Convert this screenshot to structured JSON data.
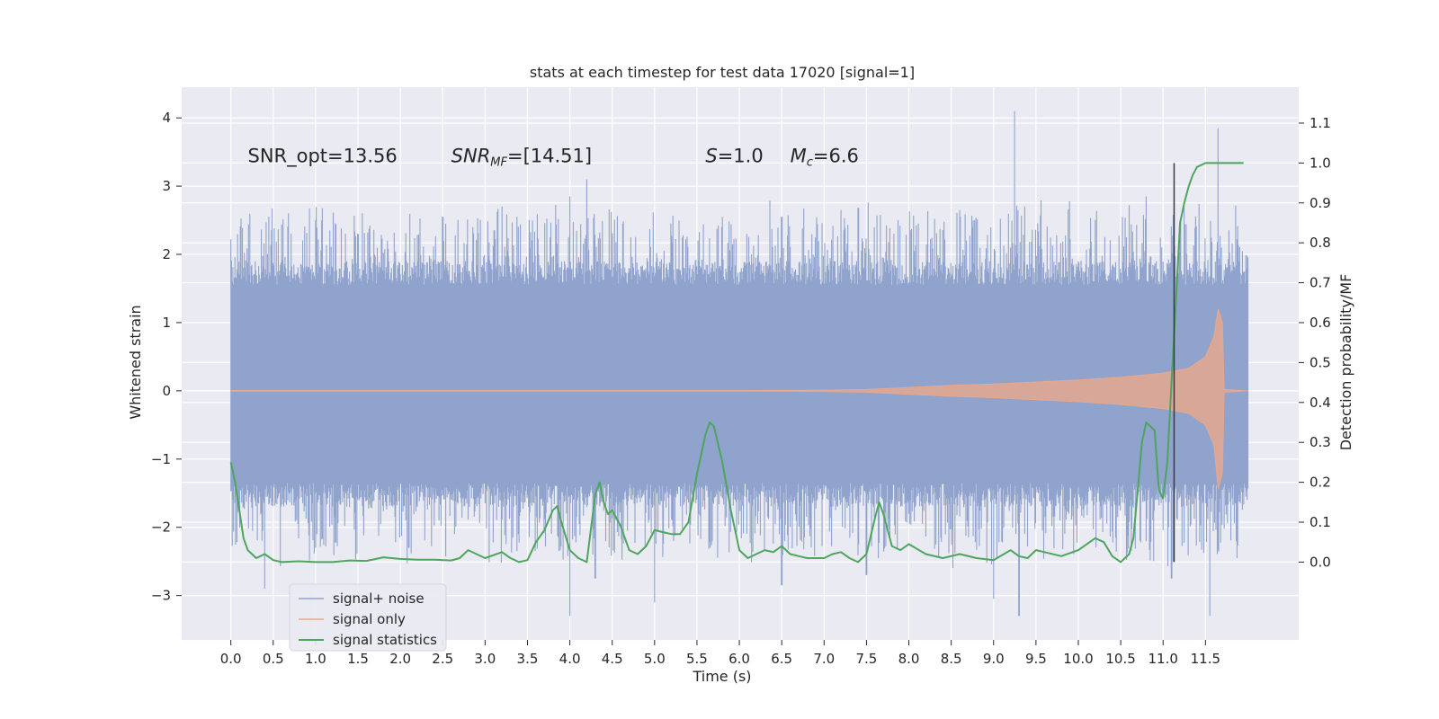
{
  "chart_data": {
    "type": "line",
    "title": "stats at each timestep for test data 17020 [signal=1]",
    "xlabel": "Time (s)",
    "ylabel": "Whitened strain",
    "ylabel_right": "Detection probability/MF",
    "xlim": [
      -0.58,
      12.6
    ],
    "ylim": [
      -3.65,
      4.45
    ],
    "ylim_right": [
      -0.195,
      1.19
    ],
    "x_ticks": [
      0.0,
      0.5,
      1.0,
      1.5,
      2.0,
      2.5,
      3.0,
      3.5,
      4.0,
      4.5,
      5.0,
      5.5,
      6.0,
      6.5,
      7.0,
      7.5,
      8.0,
      8.5,
      9.0,
      9.5,
      10.0,
      10.5,
      11.0,
      11.5
    ],
    "x_tick_labels": [
      "0.0",
      "0.5",
      "1.0",
      "1.5",
      "2.0",
      "2.5",
      "3.0",
      "3.5",
      "4.0",
      "4.5",
      "5.0",
      "5.5",
      "6.0",
      "6.5",
      "7.0",
      "7.5",
      "8.0",
      "8.5",
      "9.0",
      "9.5",
      "10.0",
      "10.5",
      "11.0",
      "11.5"
    ],
    "y_ticks": [
      -3,
      -2,
      -1,
      0,
      1,
      2,
      3,
      4
    ],
    "y_tick_labels": [
      "−3",
      "−2",
      "−1",
      "0",
      "1",
      "2",
      "3",
      "4"
    ],
    "y_right_ticks": [
      0.0,
      0.1,
      0.2,
      0.3,
      0.4,
      0.5,
      0.6,
      0.7,
      0.8,
      0.9,
      1.0,
      1.1
    ],
    "y_right_tick_labels": [
      "0.0",
      "0.1",
      "0.2",
      "0.3",
      "0.4",
      "0.5",
      "0.6",
      "0.7",
      "0.8",
      "0.9",
      "1.0",
      "1.1"
    ],
    "grid": true,
    "legend_position": "lower-left",
    "annotations": [
      {
        "text": "SNR_opt=13.56",
        "x": 0.2,
        "y": 3.35
      },
      {
        "text": "SNR",
        "sub": "MF",
        "suffix": "=[14.51]",
        "x": 2.6,
        "y": 3.35
      },
      {
        "text": "S",
        "sub": "",
        "suffix": "=1.0",
        "x": 5.6,
        "y": 3.35
      },
      {
        "text": "M",
        "sub": "c",
        "suffix": "=6.6",
        "x": 6.6,
        "y": 3.35
      }
    ],
    "vline": {
      "x": 11.13,
      "y_right": [
        0.0,
        1.0
      ],
      "color": "#3a3a3a"
    },
    "series": [
      {
        "name": "signal+ noise",
        "color": "#8fa3cc",
        "x_range": [
          0.0,
          12.0
        ],
        "band_low": [
          -1.35,
          -1.35
        ],
        "band_high": [
          1.55,
          1.55
        ],
        "peaks": [
          [
            0.45,
            2.55
          ],
          [
            1.0,
            2.5
          ],
          [
            1.5,
            2.3
          ],
          [
            2.5,
            2.55
          ],
          [
            3.2,
            2.7
          ],
          [
            4.0,
            2.85
          ],
          [
            4.2,
            3.1
          ],
          [
            6.5,
            2.55
          ],
          [
            7.2,
            2.65
          ],
          [
            8.6,
            2.65
          ],
          [
            9.25,
            4.1
          ],
          [
            10.8,
            2.85
          ],
          [
            11.65,
            3.85
          ]
        ],
        "troughs": [
          [
            0.4,
            -2.9
          ],
          [
            1.0,
            -2.3
          ],
          [
            2.1,
            -2.3
          ],
          [
            4.0,
            -3.3
          ],
          [
            4.3,
            -2.75
          ],
          [
            5.0,
            -3.1
          ],
          [
            6.5,
            -2.85
          ],
          [
            7.5,
            -2.7
          ],
          [
            9.0,
            -3.05
          ],
          [
            9.3,
            -3.3
          ],
          [
            11.1,
            -2.75
          ],
          [
            11.55,
            -3.3
          ]
        ]
      },
      {
        "name": "signal only",
        "color": "#e5a88d",
        "envelope_x": [
          0.0,
          6.0,
          7.0,
          7.5,
          8.0,
          8.5,
          9.0,
          9.5,
          10.0,
          10.5,
          11.0,
          11.3,
          11.5,
          11.6,
          11.65,
          11.7,
          11.72,
          12.0
        ],
        "envelope_amp": [
          0.005,
          0.005,
          0.01,
          0.02,
          0.05,
          0.08,
          0.1,
          0.13,
          0.16,
          0.2,
          0.26,
          0.33,
          0.5,
          0.8,
          1.2,
          1.0,
          0.02,
          0.0
        ]
      },
      {
        "name": "signal statistics",
        "color": "#4ea55e",
        "axis": "right",
        "x": [
          0.0,
          0.05,
          0.1,
          0.15,
          0.2,
          0.3,
          0.4,
          0.5,
          0.6,
          0.8,
          1.0,
          1.2,
          1.4,
          1.6,
          1.8,
          2.0,
          2.2,
          2.4,
          2.6,
          2.7,
          2.8,
          2.9,
          3.0,
          3.2,
          3.3,
          3.4,
          3.5,
          3.6,
          3.7,
          3.8,
          3.85,
          3.9,
          4.0,
          4.1,
          4.2,
          4.3,
          4.35,
          4.4,
          4.45,
          4.5,
          4.6,
          4.7,
          4.8,
          4.9,
          5.0,
          5.1,
          5.2,
          5.3,
          5.4,
          5.5,
          5.6,
          5.65,
          5.7,
          5.8,
          5.9,
          6.0,
          6.1,
          6.2,
          6.3,
          6.4,
          6.5,
          6.6,
          6.8,
          7.0,
          7.1,
          7.2,
          7.3,
          7.4,
          7.5,
          7.6,
          7.65,
          7.7,
          7.8,
          7.9,
          8.0,
          8.2,
          8.4,
          8.6,
          8.8,
          9.0,
          9.2,
          9.3,
          9.4,
          9.5,
          9.6,
          9.8,
          10.0,
          10.1,
          10.2,
          10.3,
          10.4,
          10.5,
          10.6,
          10.65,
          10.7,
          10.75,
          10.8,
          10.9,
          10.95,
          11.0,
          11.05,
          11.1,
          11.15,
          11.2,
          11.25,
          11.3,
          11.35,
          11.4,
          11.5,
          11.6,
          11.8,
          11.95
        ],
        "y": [
          0.25,
          0.2,
          0.13,
          0.06,
          0.03,
          0.01,
          0.02,
          0.005,
          0.0,
          0.002,
          0.0,
          0.0,
          0.004,
          0.003,
          0.012,
          0.008,
          0.006,
          0.006,
          0.004,
          0.01,
          0.03,
          0.02,
          0.01,
          0.025,
          0.01,
          0.0,
          0.005,
          0.05,
          0.08,
          0.13,
          0.14,
          0.1,
          0.03,
          0.01,
          0.0,
          0.17,
          0.2,
          0.15,
          0.12,
          0.13,
          0.09,
          0.03,
          0.02,
          0.04,
          0.08,
          0.075,
          0.07,
          0.07,
          0.1,
          0.22,
          0.32,
          0.35,
          0.34,
          0.25,
          0.13,
          0.03,
          0.01,
          0.02,
          0.03,
          0.025,
          0.04,
          0.02,
          0.01,
          0.01,
          0.02,
          0.025,
          0.01,
          0.0,
          0.02,
          0.11,
          0.15,
          0.12,
          0.04,
          0.03,
          0.045,
          0.02,
          0.01,
          0.02,
          0.01,
          0.005,
          0.03,
          0.015,
          0.01,
          0.03,
          0.025,
          0.015,
          0.03,
          0.045,
          0.06,
          0.05,
          0.015,
          0.0,
          0.02,
          0.06,
          0.18,
          0.3,
          0.35,
          0.33,
          0.18,
          0.16,
          0.25,
          0.45,
          0.65,
          0.85,
          0.9,
          0.94,
          0.97,
          0.99,
          1.0,
          1.0,
          1.0,
          1.0
        ]
      }
    ]
  }
}
